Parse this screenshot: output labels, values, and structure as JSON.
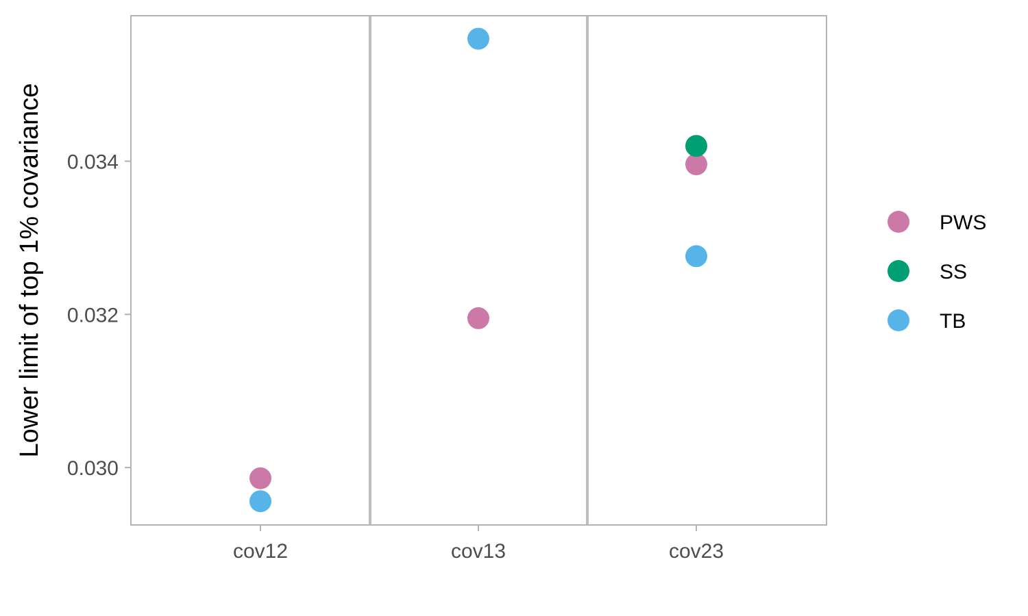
{
  "chart_data": {
    "type": "scatter",
    "title": "",
    "xlabel": "",
    "ylabel": "Lower limit of top 1% covariance",
    "categories": [
      "cov12",
      "cov13",
      "cov23"
    ],
    "ylim": [
      0.02925,
      0.0359
    ],
    "yticks": [
      0.03,
      0.032,
      0.034
    ],
    "ytick_labels": [
      "0.030",
      "0.032",
      "0.034"
    ],
    "grid": false,
    "category_separators": true,
    "legend_position": "right",
    "series": [
      {
        "name": "PWS",
        "color": "#CC79A7",
        "values": [
          0.02986,
          0.03195,
          0.03396
        ]
      },
      {
        "name": "SS",
        "color": "#009E73",
        "values": [
          null,
          null,
          0.0342
        ]
      },
      {
        "name": "TB",
        "color": "#56B4E9",
        "values": [
          0.02956,
          0.0356,
          0.03276
        ]
      }
    ]
  }
}
